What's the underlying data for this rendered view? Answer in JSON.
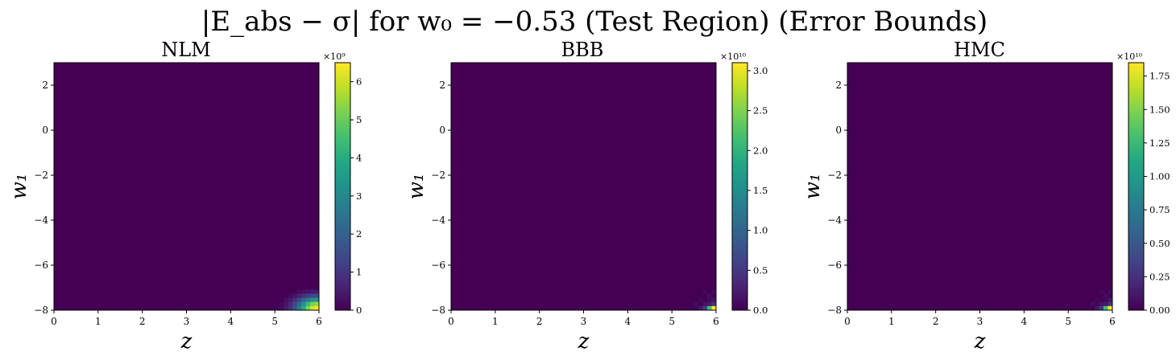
{
  "figure": {
    "title": "|E_abs − σ| for w₀ = −0.53 (Test Region) (Error Bounds)",
    "colors": {
      "viridis": [
        "#440154",
        "#482475",
        "#414487",
        "#355f8d",
        "#2a788e",
        "#21918c",
        "#22a884",
        "#44bf70",
        "#7ad151",
        "#bddf26",
        "#fde725"
      ],
      "background": "#440154"
    }
  },
  "chart_data": [
    {
      "type": "heatmap",
      "title": "NLM",
      "xlabel": "z",
      "ylabel": "w₁",
      "xlim": [
        0,
        6
      ],
      "ylim": [
        -8,
        3
      ],
      "xticks": [
        "0",
        "1",
        "2",
        "3",
        "4",
        "5",
        "6"
      ],
      "yticks": [
        "−8",
        "−6",
        "−4",
        "−2",
        "0",
        "2"
      ],
      "colorbar": {
        "range": [
          0,
          6.5
        ],
        "exponent_label": "×10⁹",
        "ticks": [
          "0",
          "1",
          "2",
          "3",
          "4",
          "5",
          "6"
        ],
        "tick_values": [
          0,
          1,
          2,
          3,
          4,
          5,
          6
        ]
      },
      "hotspot": {
        "corner": "bottom-right",
        "spread": "wide",
        "peak": 6.4
      }
    },
    {
      "type": "heatmap",
      "title": "BBB",
      "xlabel": "z",
      "ylabel": "w₁",
      "xlim": [
        0,
        6
      ],
      "ylim": [
        -8,
        3
      ],
      "xticks": [
        "0",
        "1",
        "2",
        "3",
        "4",
        "5",
        "6"
      ],
      "yticks": [
        "−8",
        "−6",
        "−4",
        "−2",
        "0",
        "2"
      ],
      "colorbar": {
        "range": [
          0,
          3.1
        ],
        "exponent_label": "×10¹⁰",
        "ticks": [
          "0.0",
          "0.5",
          "1.0",
          "1.5",
          "2.0",
          "2.5",
          "3.0"
        ],
        "tick_values": [
          0,
          0.5,
          1.0,
          1.5,
          2.0,
          2.5,
          3.0
        ]
      },
      "hotspot": {
        "corner": "bottom-right",
        "spread": "narrow",
        "peak": 3.05
      }
    },
    {
      "type": "heatmap",
      "title": "HMC",
      "xlabel": "z",
      "ylabel": "w₁",
      "xlim": [
        0,
        6
      ],
      "ylim": [
        -8,
        3
      ],
      "xticks": [
        "0",
        "1",
        "2",
        "3",
        "4",
        "5",
        "6"
      ],
      "yticks": [
        "−8",
        "−6",
        "−4",
        "−2",
        "0",
        "2"
      ],
      "colorbar": {
        "range": [
          0,
          1.85
        ],
        "exponent_label": "×10¹⁰",
        "ticks": [
          "0.00",
          "0.25",
          "0.50",
          "0.75",
          "1.00",
          "1.25",
          "1.50",
          "1.75"
        ],
        "tick_values": [
          0,
          0.25,
          0.5,
          0.75,
          1.0,
          1.25,
          1.5,
          1.75
        ]
      },
      "hotspot": {
        "corner": "bottom-right",
        "spread": "narrow",
        "peak": 1.82
      }
    }
  ]
}
